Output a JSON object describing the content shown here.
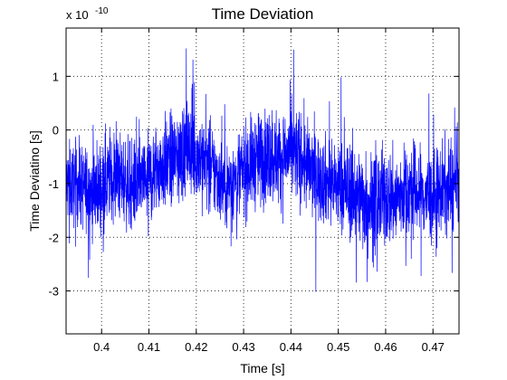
{
  "chart_data": {
    "type": "line",
    "title": "Time Deviation",
    "xlabel": "Time [s]",
    "ylabel": "Time Deviatino [s]",
    "y_multiplier_label": "x 10",
    "y_multiplier_exponent": "-10",
    "xlim": [
      0.3925,
      0.4755
    ],
    "ylim": [
      -3.8,
      1.9
    ],
    "xticks": [
      0.4,
      0.41,
      0.42,
      0.43,
      0.44,
      0.45,
      0.46,
      0.47
    ],
    "xtick_labels": [
      "0.4",
      "0.41",
      "0.42",
      "0.43",
      "0.44",
      "0.45",
      "0.46",
      "0.47"
    ],
    "yticks": [
      1,
      0,
      -1,
      -2,
      -3
    ],
    "ytick_labels": [
      "1",
      "0",
      "-1",
      "-2",
      "-3"
    ],
    "grid": true,
    "series": [
      {
        "color": "#0000ff",
        "x": [
          0.3925,
          0.395,
          0.3975,
          0.4,
          0.402,
          0.404,
          0.406,
          0.408,
          0.41,
          0.412,
          0.414,
          0.416,
          0.418,
          0.42,
          0.422,
          0.424,
          0.426,
          0.428,
          0.43,
          0.432,
          0.434,
          0.436,
          0.438,
          0.44,
          0.442,
          0.444,
          0.446,
          0.448,
          0.45,
          0.452,
          0.454,
          0.456,
          0.458,
          0.46,
          0.462,
          0.464,
          0.466,
          0.468,
          0.47,
          0.472,
          0.474,
          0.4755
        ],
        "center": [
          -1.0,
          -1.0,
          -1.15,
          -1.05,
          -0.8,
          -0.9,
          -1.05,
          -1.0,
          -0.9,
          -0.7,
          -0.6,
          -0.55,
          -0.35,
          -0.45,
          -0.6,
          -0.8,
          -1.05,
          -0.95,
          -0.75,
          -0.6,
          -0.5,
          -0.45,
          -0.55,
          -0.4,
          -0.5,
          -0.75,
          -0.9,
          -0.95,
          -1.05,
          -1.15,
          -1.2,
          -1.35,
          -1.35,
          -1.25,
          -1.3,
          -1.15,
          -1.15,
          -1.2,
          -1.3,
          -1.1,
          -1.1,
          -1.0
        ],
        "amplitude": [
          0.85,
          0.9,
          0.95,
          1.05,
          1.0,
          0.95,
          0.95,
          0.95,
          1.0,
          1.0,
          1.0,
          1.05,
          1.1,
          1.05,
          1.0,
          0.95,
          0.9,
          0.95,
          1.0,
          1.0,
          1.05,
          1.05,
          1.0,
          1.05,
          1.0,
          1.0,
          0.95,
          0.95,
          1.0,
          1.05,
          1.05,
          1.1,
          1.1,
          1.05,
          1.05,
          1.0,
          1.0,
          1.0,
          1.0,
          1.0,
          1.0,
          0.95
        ]
      }
    ]
  }
}
